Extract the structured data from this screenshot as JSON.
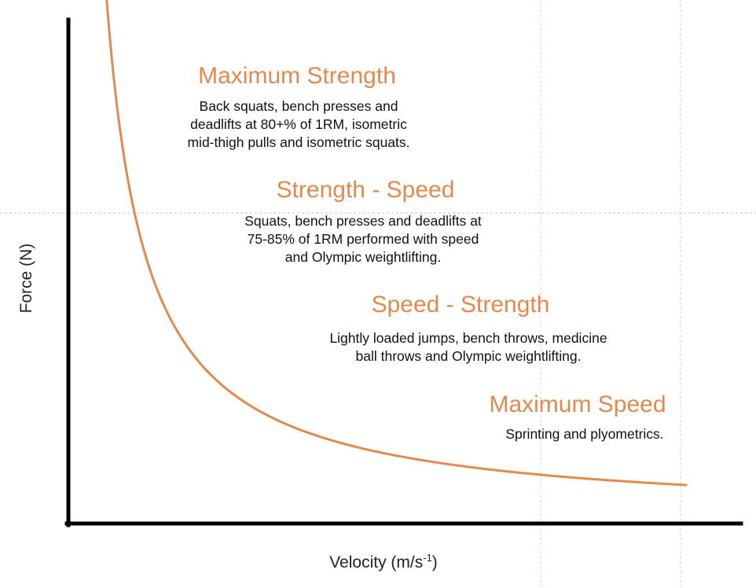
{
  "axes": {
    "y_label": "Force (N)",
    "x_label_main": "Velocity (m/s",
    "x_label_sup": "-1",
    "x_label_end": ")"
  },
  "curve": {
    "color": "#e08a4f",
    "shape": "force-velocity hyperbola"
  },
  "zones": [
    {
      "title": "Maximum Strength",
      "lines": [
        "Back squats, bench presses and",
        "deadlifts at 80+% of 1RM, isometric",
        "mid-thigh pulls and isometric squats."
      ]
    },
    {
      "title": "Strength - Speed",
      "lines": [
        "Squats, bench presses and deadlifts at",
        "75-85% of 1RM performed with speed",
        "and Olympic weightlifting."
      ]
    },
    {
      "title": "Speed - Strength",
      "lines": [
        "Lightly loaded jumps, bench throws, medicine",
        "ball throws and Olympic weightlifting."
      ]
    },
    {
      "title": "Maximum Speed",
      "lines": [
        "Sprinting and plyometrics."
      ]
    }
  ],
  "colors": {
    "accent": "#e08a4f",
    "axis": "#000000",
    "guide": "#f0c9a8"
  }
}
